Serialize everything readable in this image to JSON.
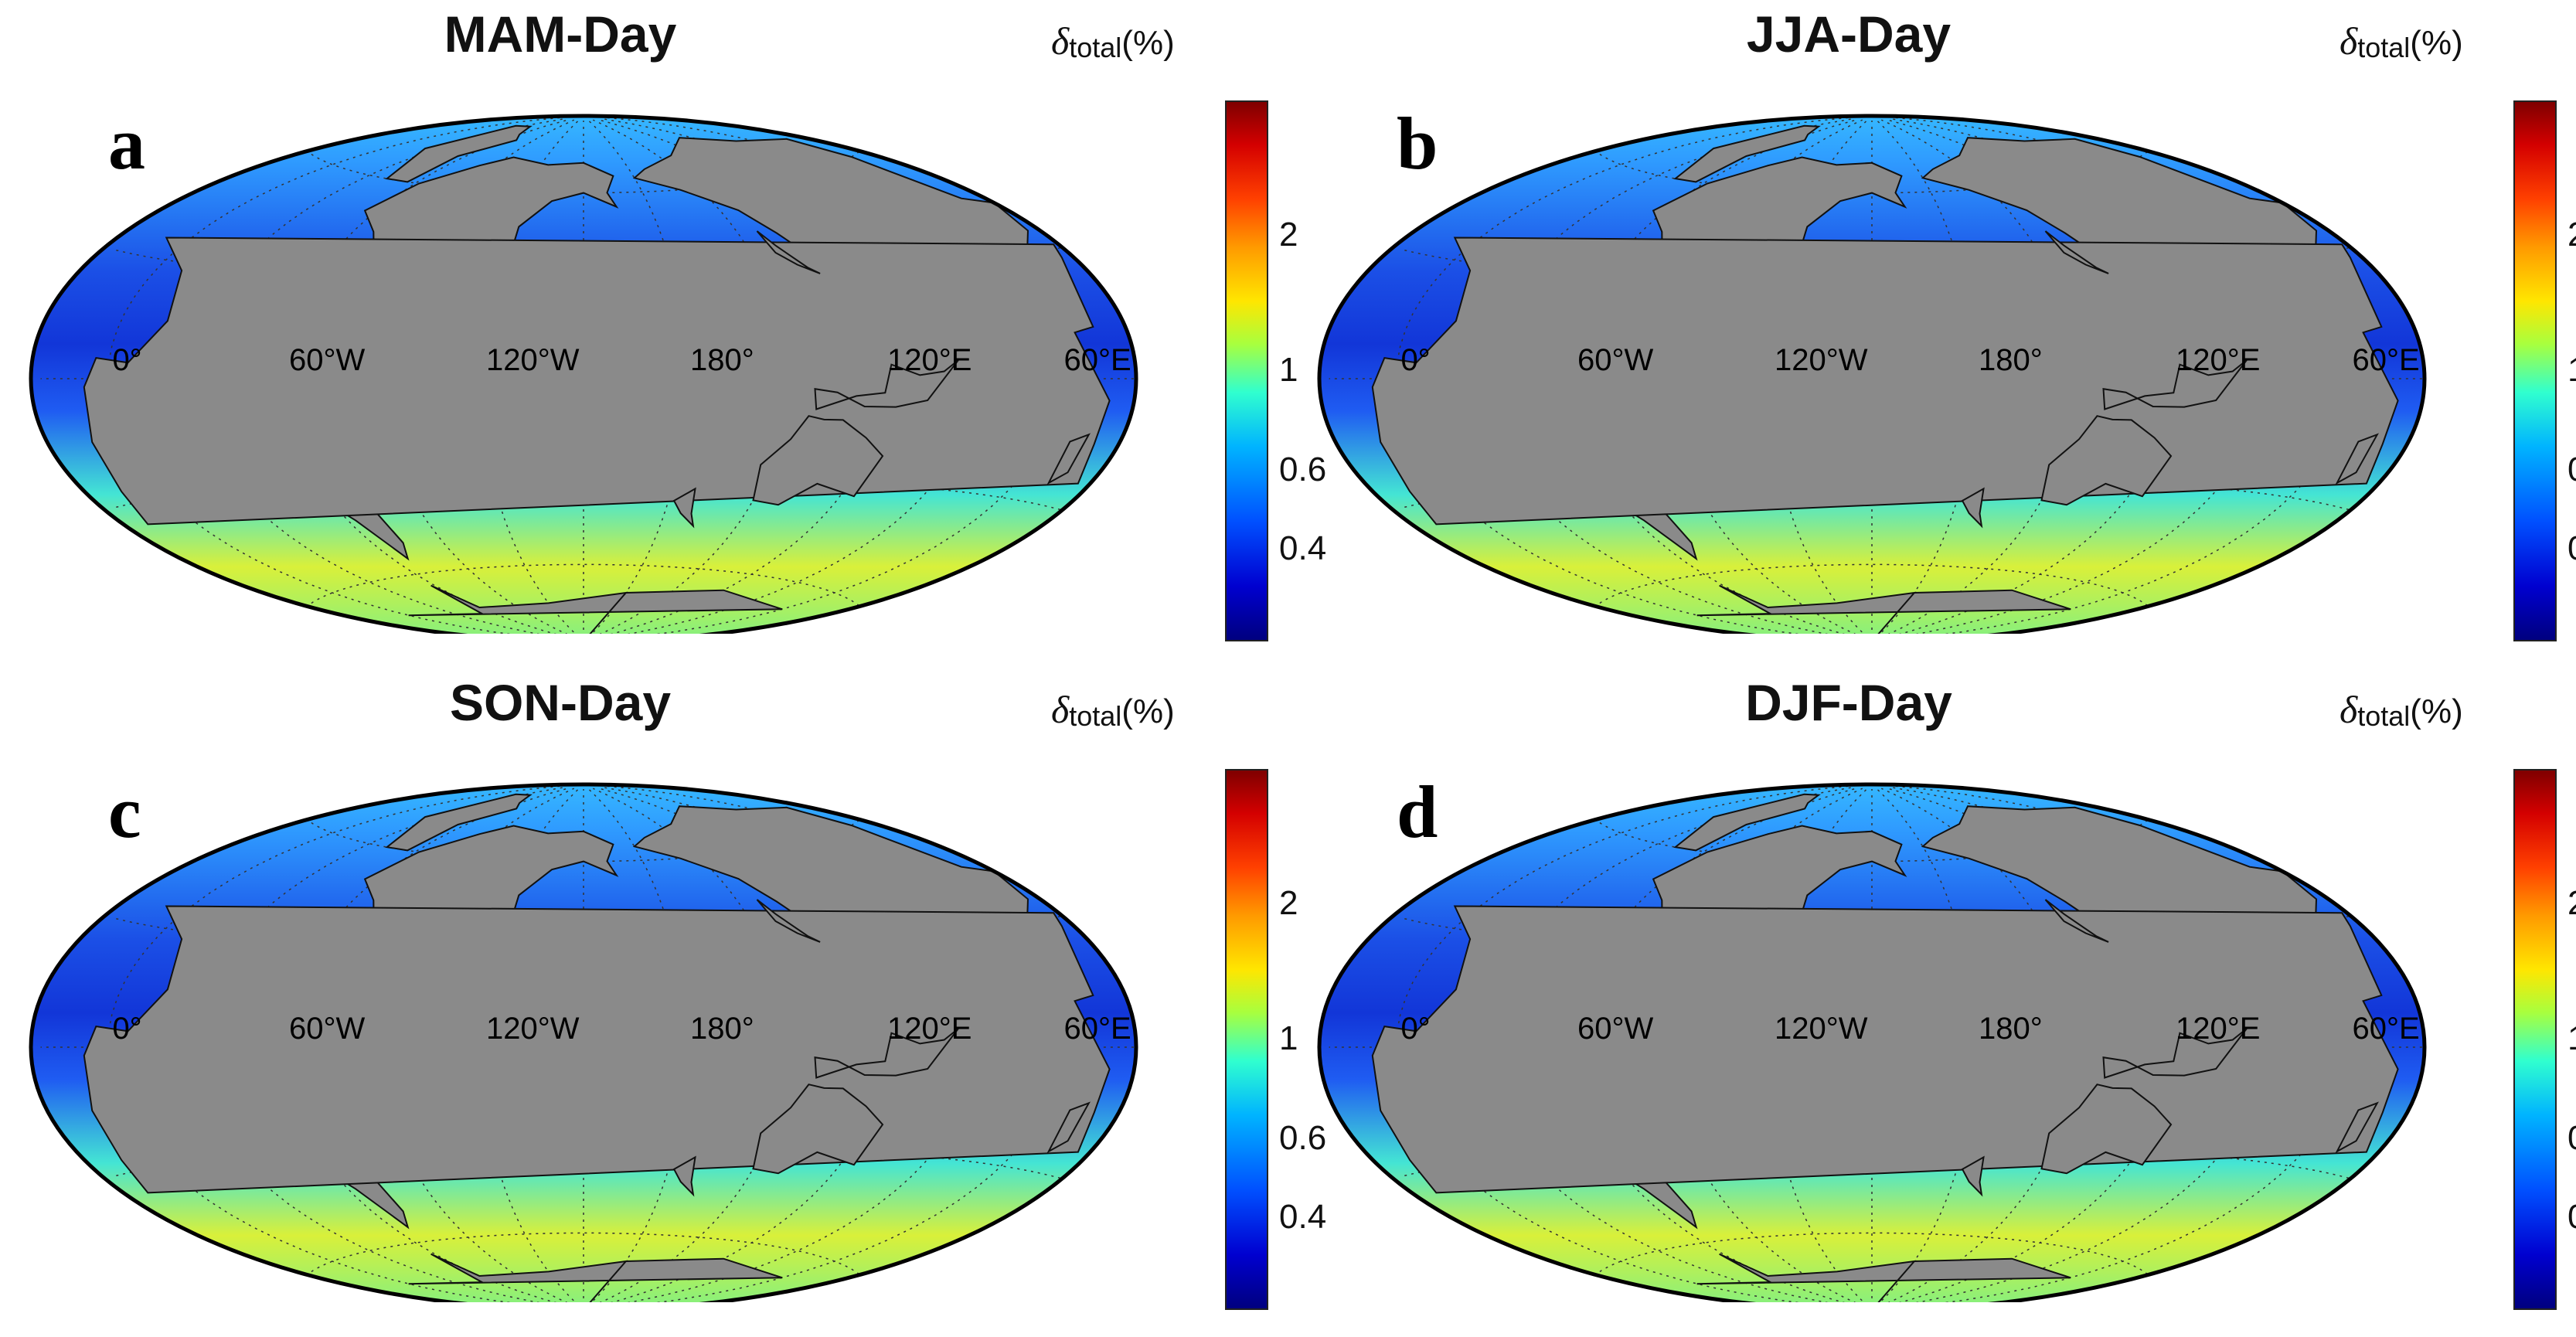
{
  "colorbar": {
    "title_symbol": "δ",
    "title_subscript": "total",
    "title_unit": "(%)",
    "scale": "log",
    "ticks": [
      "2",
      "1",
      "0.6",
      "0.4"
    ],
    "colors": [
      "#7f0000",
      "#ff4000",
      "#ffe600",
      "#30ffcf",
      "#0050ff",
      "#00007f"
    ]
  },
  "longitude_labels": [
    "60°E",
    "120°E",
    "180°",
    "120°W",
    "60°W",
    "0°"
  ],
  "land_color": "#8a8a8a",
  "panels": [
    {
      "letter": "a",
      "title": "MAM-Day"
    },
    {
      "letter": "b",
      "title": "JJA-Day"
    },
    {
      "letter": "c",
      "title": "SON-Day"
    },
    {
      "letter": "d",
      "title": "DJF-Day"
    }
  ]
}
